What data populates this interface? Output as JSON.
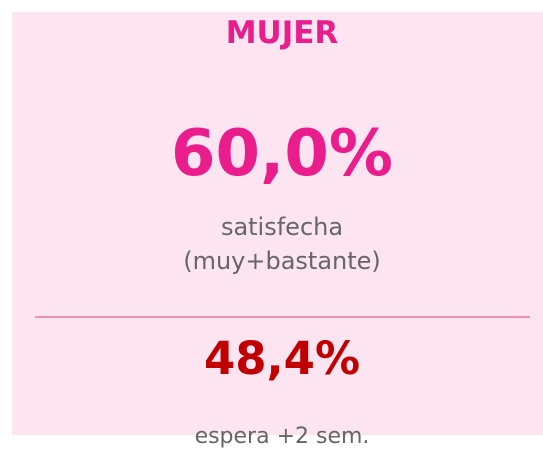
{
  "card": {
    "title": "MUJER",
    "primary": {
      "value": "60,0%",
      "label_lines": [
        "satisfecha",
        "(muy+bastante)"
      ]
    },
    "secondary": {
      "value": "48,4%",
      "label": "espera +2 sem."
    }
  }
}
